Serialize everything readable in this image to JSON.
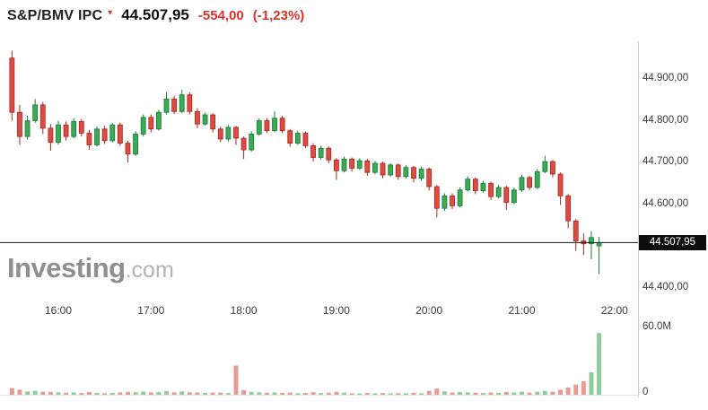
{
  "header": {
    "symbol": "S&P/BMV IPC",
    "marker_icon": "▾",
    "last_price_label": "44.507,95",
    "change_label": "-554,00",
    "change_pct_label": "(-1,23%)"
  },
  "watermark": {
    "brand": "Investing",
    "suffix": ".com"
  },
  "colors": {
    "up_fill": "#3aaa55",
    "up_border": "#1d7a38",
    "down_fill": "#dd4b42",
    "down_border": "#a8281f",
    "vol_up": "#8fce9b",
    "vol_down": "#e89b94",
    "price_line": "#1a1a1a",
    "tag_bg": "#0d0d0d",
    "tag_text": "#ffffff",
    "change_text": "#d8332a",
    "axis_text": "#3c3c3c",
    "watermark": "#8f8f8f"
  },
  "chart_data": {
    "type": "candlestick_with_volume",
    "title": "S&P/BMV IPC intraday candlestick chart",
    "xlabel": "",
    "ylabel": "",
    "grid": false,
    "legend_position": "none",
    "ylim": [
      44400,
      45000
    ],
    "last_price": 44507.95,
    "change": -554.0,
    "change_pct": -1.23,
    "x_ticks": [
      "16:00",
      "17:00",
      "18:00",
      "19:00",
      "20:00",
      "21:00",
      "22:00"
    ],
    "y_ticks": [
      {
        "price": 44900,
        "label": "44.900,00"
      },
      {
        "price": 44800,
        "label": "44.800,00"
      },
      {
        "price": 44700,
        "label": "44.700,00"
      },
      {
        "price": 44600,
        "label": "44.600,00"
      },
      {
        "price": 44400,
        "label": "44.400,00"
      }
    ],
    "price_line": {
      "price": 44507.95,
      "label": "44.507,95"
    },
    "volume_axis": {
      "max": 60,
      "max_label": "60.0M",
      "min_label": "0",
      "unit": "millions"
    },
    "candles": {
      "columns": [
        "time",
        "open",
        "high",
        "low",
        "close",
        "volume_m"
      ],
      "rows": [
        [
          "15:30",
          44950,
          44968,
          44800,
          44820,
          6.0
        ],
        [
          "15:35",
          44820,
          44838,
          44742,
          44762,
          4.5
        ],
        [
          "15:40",
          44762,
          44812,
          44755,
          44800,
          3.0
        ],
        [
          "15:45",
          44800,
          44852,
          44795,
          44838,
          3.5
        ],
        [
          "15:50",
          44838,
          44845,
          44768,
          44782,
          2.8
        ],
        [
          "15:55",
          44782,
          44792,
          44728,
          44748,
          2.5
        ],
        [
          "16:00",
          44748,
          44800,
          44742,
          44790,
          2.2
        ],
        [
          "16:05",
          44790,
          44798,
          44752,
          44762,
          1.8
        ],
        [
          "16:10",
          44762,
          44806,
          44758,
          44798,
          2.0
        ],
        [
          "16:15",
          44798,
          44804,
          44762,
          44770,
          1.5
        ],
        [
          "16:20",
          44770,
          44778,
          44730,
          44742,
          2.4
        ],
        [
          "16:25",
          44742,
          44786,
          44738,
          44780,
          1.6
        ],
        [
          "16:30",
          44780,
          44788,
          44744,
          44752,
          1.4
        ],
        [
          "16:35",
          44752,
          44795,
          44748,
          44790,
          1.7
        ],
        [
          "16:40",
          44790,
          44796,
          44740,
          44746,
          2.1
        ],
        [
          "16:45",
          44746,
          44752,
          44700,
          44720,
          2.6
        ],
        [
          "16:50",
          44720,
          44775,
          44715,
          44768,
          2.3
        ],
        [
          "16:55",
          44768,
          44815,
          44762,
          44808,
          2.8
        ],
        [
          "17:00",
          44808,
          44815,
          44772,
          44780,
          2.0
        ],
        [
          "17:05",
          44780,
          44826,
          44776,
          44820,
          2.4
        ],
        [
          "17:10",
          44820,
          44868,
          44815,
          44852,
          3.2
        ],
        [
          "17:15",
          44852,
          44860,
          44816,
          44822,
          2.1
        ],
        [
          "17:20",
          44822,
          44874,
          44818,
          44862,
          2.9
        ],
        [
          "17:25",
          44862,
          44868,
          44815,
          44822,
          2.2
        ],
        [
          "17:30",
          44822,
          44830,
          44782,
          44792,
          2.0
        ],
        [
          "17:35",
          44792,
          44820,
          44788,
          44814,
          1.6
        ],
        [
          "17:40",
          44814,
          44818,
          44772,
          44780,
          1.8
        ],
        [
          "17:45",
          44780,
          44786,
          44748,
          44756,
          1.9
        ],
        [
          "17:50",
          44756,
          44790,
          44750,
          44784,
          1.5
        ],
        [
          "17:55",
          44784,
          44788,
          44742,
          44758,
          26.0
        ],
        [
          "18:00",
          44758,
          44762,
          44708,
          44730,
          4.0
        ],
        [
          "18:05",
          44730,
          44775,
          44726,
          44768,
          2.5
        ],
        [
          "18:10",
          44768,
          44806,
          44764,
          44800,
          2.2
        ],
        [
          "18:15",
          44800,
          44806,
          44770,
          44776,
          1.8
        ],
        [
          "18:20",
          44776,
          44822,
          44772,
          44806,
          2.0
        ],
        [
          "18:25",
          44806,
          44812,
          44770,
          44776,
          1.7
        ],
        [
          "18:30",
          44776,
          44780,
          44738,
          44746,
          1.9
        ],
        [
          "18:35",
          44746,
          44776,
          44742,
          44770,
          1.4
        ],
        [
          "18:40",
          44770,
          44774,
          44734,
          44740,
          1.6
        ],
        [
          "18:45",
          44740,
          44746,
          44702,
          44712,
          2.3
        ],
        [
          "18:50",
          44712,
          44740,
          44706,
          44734,
          1.5
        ],
        [
          "18:55",
          44734,
          44738,
          44698,
          44706,
          1.8
        ],
        [
          "19:00",
          44706,
          44710,
          44658,
          44680,
          2.6
        ],
        [
          "19:05",
          44680,
          44714,
          44676,
          44708,
          1.7
        ],
        [
          "19:10",
          44708,
          44712,
          44678,
          44686,
          1.3
        ],
        [
          "19:15",
          44686,
          44710,
          44682,
          44704,
          1.2
        ],
        [
          "19:20",
          44704,
          44708,
          44668,
          44676,
          1.6
        ],
        [
          "19:25",
          44676,
          44704,
          44672,
          44698,
          1.3
        ],
        [
          "19:30",
          44698,
          44702,
          44662,
          44670,
          1.5
        ],
        [
          "19:35",
          44670,
          44698,
          44666,
          44694,
          1.2
        ],
        [
          "19:40",
          44694,
          44698,
          44658,
          44666,
          1.4
        ],
        [
          "19:45",
          44666,
          44694,
          44662,
          44688,
          1.3
        ],
        [
          "19:50",
          44688,
          44692,
          44652,
          44662,
          1.7
        ],
        [
          "19:55",
          44662,
          44690,
          44656,
          44684,
          1.4
        ],
        [
          "20:00",
          44684,
          44688,
          44632,
          44642,
          3.5
        ],
        [
          "20:05",
          44642,
          44646,
          44568,
          44590,
          5.5
        ],
        [
          "20:10",
          44590,
          44626,
          44584,
          44620,
          3.0
        ],
        [
          "20:15",
          44620,
          44626,
          44588,
          44596,
          2.0
        ],
        [
          "20:20",
          44596,
          44640,
          44592,
          44634,
          2.4
        ],
        [
          "20:25",
          44634,
          44666,
          44630,
          44660,
          2.2
        ],
        [
          "20:30",
          44660,
          44664,
          44624,
          44632,
          1.8
        ],
        [
          "20:35",
          44632,
          44656,
          44628,
          44650,
          1.5
        ],
        [
          "20:40",
          44650,
          44654,
          44610,
          44618,
          1.9
        ],
        [
          "20:45",
          44618,
          44646,
          44614,
          44640,
          1.6
        ],
        [
          "20:50",
          44640,
          44644,
          44586,
          44604,
          2.5
        ],
        [
          "20:55",
          44604,
          44640,
          44600,
          44634,
          2.0
        ],
        [
          "21:00",
          44634,
          44670,
          44630,
          44664,
          2.8
        ],
        [
          "21:05",
          44664,
          44668,
          44634,
          44640,
          1.9
        ],
        [
          "21:10",
          44640,
          44684,
          44636,
          44678,
          2.6
        ],
        [
          "21:15",
          44678,
          44716,
          44674,
          44702,
          3.4
        ],
        [
          "21:20",
          44702,
          44706,
          44664,
          44672,
          2.7
        ],
        [
          "21:25",
          44672,
          44676,
          44598,
          44620,
          4.5
        ],
        [
          "21:30",
          44620,
          44624,
          44542,
          44560,
          6.5
        ],
        [
          "21:35",
          44560,
          44564,
          44488,
          44512,
          9.0
        ],
        [
          "21:40",
          44512,
          44530,
          44478,
          44505,
          12.0
        ],
        [
          "21:45",
          44505,
          44535,
          44468,
          44520,
          20.0
        ],
        [
          "21:50",
          44500,
          44522,
          44432,
          44508,
          55.0
        ]
      ]
    }
  }
}
